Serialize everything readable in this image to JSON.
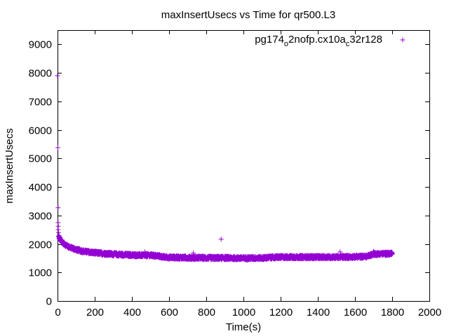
{
  "chart_data": {
    "type": "scatter",
    "title": "maxInsertUsecs vs Time for qr500.L3",
    "xlabel": "Time(s)",
    "ylabel": "maxInsertUsecs",
    "xlim": [
      0,
      2000
    ],
    "ylim": [
      0,
      9500
    ],
    "xticks": [
      0,
      200,
      400,
      600,
      800,
      1000,
      1200,
      1400,
      1600,
      1800,
      2000
    ],
    "yticks": [
      0,
      1000,
      2000,
      3000,
      4000,
      5000,
      6000,
      7000,
      8000,
      9000
    ],
    "grid": false,
    "legend_position": "top-right",
    "colors": {
      "series": "#9400d3",
      "axes": "#000000"
    },
    "legend": {
      "parts": [
        {
          "text": "pg174",
          "sub": false
        },
        {
          "text": "o",
          "sub": true
        },
        {
          "text": "2nofp.cx10a",
          "sub": false
        },
        {
          "text": "c",
          "sub": true
        },
        {
          "text": "32r128",
          "sub": false
        }
      ]
    },
    "series": [
      {
        "marker": "plus",
        "trend": [
          [
            5,
            2250
          ],
          [
            20,
            2080
          ],
          [
            40,
            1980
          ],
          [
            60,
            1900
          ],
          [
            80,
            1850
          ],
          [
            100,
            1800
          ],
          [
            140,
            1740
          ],
          [
            200,
            1690
          ],
          [
            260,
            1660
          ],
          [
            300,
            1640
          ],
          [
            400,
            1610
          ],
          [
            500,
            1600
          ],
          [
            540,
            1580
          ],
          [
            570,
            1540
          ],
          [
            600,
            1530
          ],
          [
            700,
            1520
          ],
          [
            800,
            1510
          ],
          [
            900,
            1510
          ],
          [
            1000,
            1500
          ],
          [
            1100,
            1510
          ],
          [
            1160,
            1530
          ],
          [
            1200,
            1540
          ],
          [
            1300,
            1540
          ],
          [
            1400,
            1540
          ],
          [
            1500,
            1540
          ],
          [
            1600,
            1550
          ],
          [
            1660,
            1560
          ],
          [
            1700,
            1650
          ],
          [
            1800,
            1660
          ]
        ],
        "spread": 60,
        "outliers": [
          [
            0,
            7900
          ],
          [
            2,
            5380
          ],
          [
            3,
            3270
          ],
          [
            3,
            2750
          ],
          [
            4,
            2620
          ],
          [
            3,
            2500
          ],
          [
            5,
            2400
          ],
          [
            8,
            2300
          ],
          [
            12,
            2200
          ],
          [
            470,
            1720
          ],
          [
            730,
            1680
          ],
          [
            880,
            2170
          ],
          [
            1520,
            1720
          ],
          [
            1700,
            1740
          ]
        ]
      }
    ]
  }
}
